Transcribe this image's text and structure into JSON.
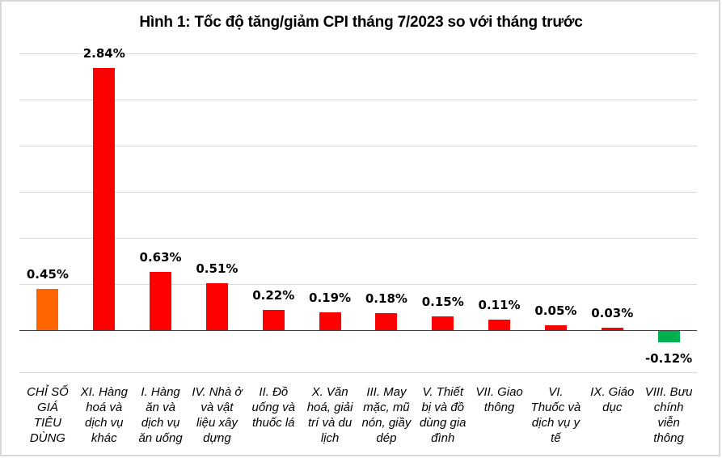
{
  "chart_data": {
    "type": "bar",
    "title": "Hình 1: Tốc độ tăng/giảm CPI tháng 7/2023 so với tháng trước",
    "xlabel": "",
    "ylabel": "",
    "ylim": [
      -0.5,
      3.0
    ],
    "grid": true,
    "legend": null,
    "categories": [
      "CHỈ SỐ GIÁ TIÊU DÙNG",
      "XI. Hàng hoá và dịch vụ khác",
      "I. Hàng ăn và dịch vụ ăn uống",
      "IV. Nhà ở và vật liệu xây dựng",
      "II. Đồ uống và thuốc lá",
      "X. Văn hoá, giải trí và du lịch",
      "III. May mặc, mũ nón, giầy dép",
      "V. Thiết bị và đồ dùng gia đình",
      "VII. Giao thông",
      "VI. Thuốc và dịch vụ y tế",
      "IX. Giáo dục",
      "VIII. Bưu chính viễn thông"
    ],
    "values": [
      0.45,
      2.84,
      0.63,
      0.51,
      0.22,
      0.19,
      0.18,
      0.15,
      0.11,
      0.05,
      0.03,
      -0.12
    ],
    "value_labels": [
      "0.45%",
      "2.84%",
      "0.63%",
      "0.51%",
      "0.22%",
      "0.19%",
      "0.18%",
      "0.15%",
      "0.11%",
      "0.05%",
      "0.03%",
      "-0.12%"
    ],
    "colors": [
      "#ff6600",
      "#ff0000",
      "#ff0000",
      "#ff0000",
      "#ff0000",
      "#ff0000",
      "#ff0000",
      "#ff0000",
      "#ff0000",
      "#ff0000",
      "#ff0000",
      "#00b050"
    ]
  },
  "labels": {
    "title": "Hình 1: Tốc độ tăng/giảm CPI tháng 7/2023 so với tháng trước",
    "cat_lines": [
      [
        "CHỈ SỐ",
        "GIÁ",
        "TIÊU",
        "DÙNG"
      ],
      [
        "XI. Hàng",
        "hoá và",
        "dịch vụ",
        "khác"
      ],
      [
        "I. Hàng",
        "ăn và",
        "dịch vụ",
        "ăn uống"
      ],
      [
        "IV. Nhà ở",
        "và vật",
        "liệu xây",
        "dựng"
      ],
      [
        "II. Đồ",
        "uống và",
        "thuốc lá"
      ],
      [
        "X. Văn",
        "hoá, giải",
        "trí và du",
        "lịch"
      ],
      [
        "III. May",
        "mặc, mũ",
        "nón, giầy",
        "dép"
      ],
      [
        "V. Thiết",
        "bị và đồ",
        "dùng gia",
        "đình"
      ],
      [
        "VII. Giao",
        "thông"
      ],
      [
        "VI.",
        "Thuốc và",
        "dịch vụ y",
        "tế"
      ],
      [
        "IX. Giáo",
        "dục"
      ],
      [
        "VIII. Bưu",
        "chính",
        "viễn",
        "thông"
      ]
    ]
  }
}
